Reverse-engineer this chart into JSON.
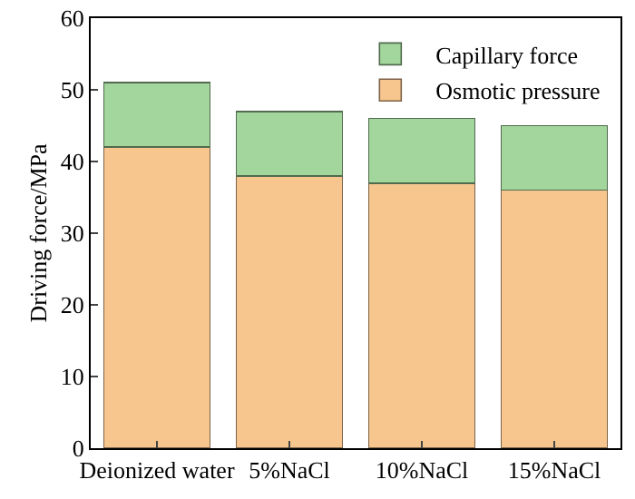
{
  "chart_data": {
    "type": "bar",
    "stacked": true,
    "ylabel": "Driving force/MPa",
    "categories": [
      "Deionized water",
      "5%NaCl",
      "10%NaCl",
      "15%NaCl"
    ],
    "series": [
      {
        "name": "Osmotic pressure",
        "color": "#f7c68e",
        "values": [
          42,
          38,
          37,
          36
        ]
      },
      {
        "name": "Capillary force",
        "color": "#a3d69c",
        "values": [
          9,
          9,
          9,
          9
        ]
      }
    ],
    "ylim": [
      0,
      60
    ],
    "yticks": [
      0,
      10,
      20,
      30,
      40,
      50,
      60
    ],
    "legend": "top right",
    "grid": false
  }
}
